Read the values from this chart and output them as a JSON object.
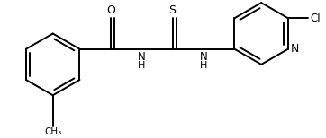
{
  "bg_color": "#ffffff",
  "line_color": "#000000",
  "lw": 1.4,
  "fs": 7.5,
  "figsize": [
    3.62,
    1.54
  ],
  "dpi": 100,
  "xlim": [
    0.0,
    10.0
  ],
  "ylim": [
    0.0,
    4.2
  ]
}
